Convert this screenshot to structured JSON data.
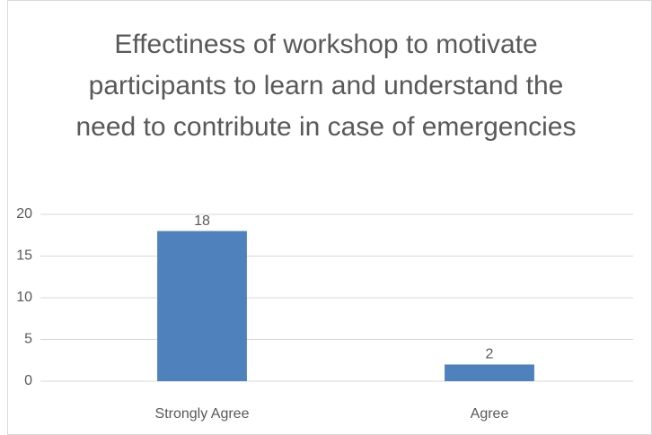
{
  "chart_data": {
    "type": "bar",
    "title": "Effectiness of workshop to motivate participants to learn and understand the need to contribute in case of emergencies",
    "categories": [
      "Strongly Agree",
      "Agree"
    ],
    "values": [
      18,
      2
    ],
    "color": "#4f81bd",
    "ylim": [
      0,
      20
    ],
    "yticks": [
      0,
      5,
      10,
      15,
      20
    ],
    "grid": true
  }
}
